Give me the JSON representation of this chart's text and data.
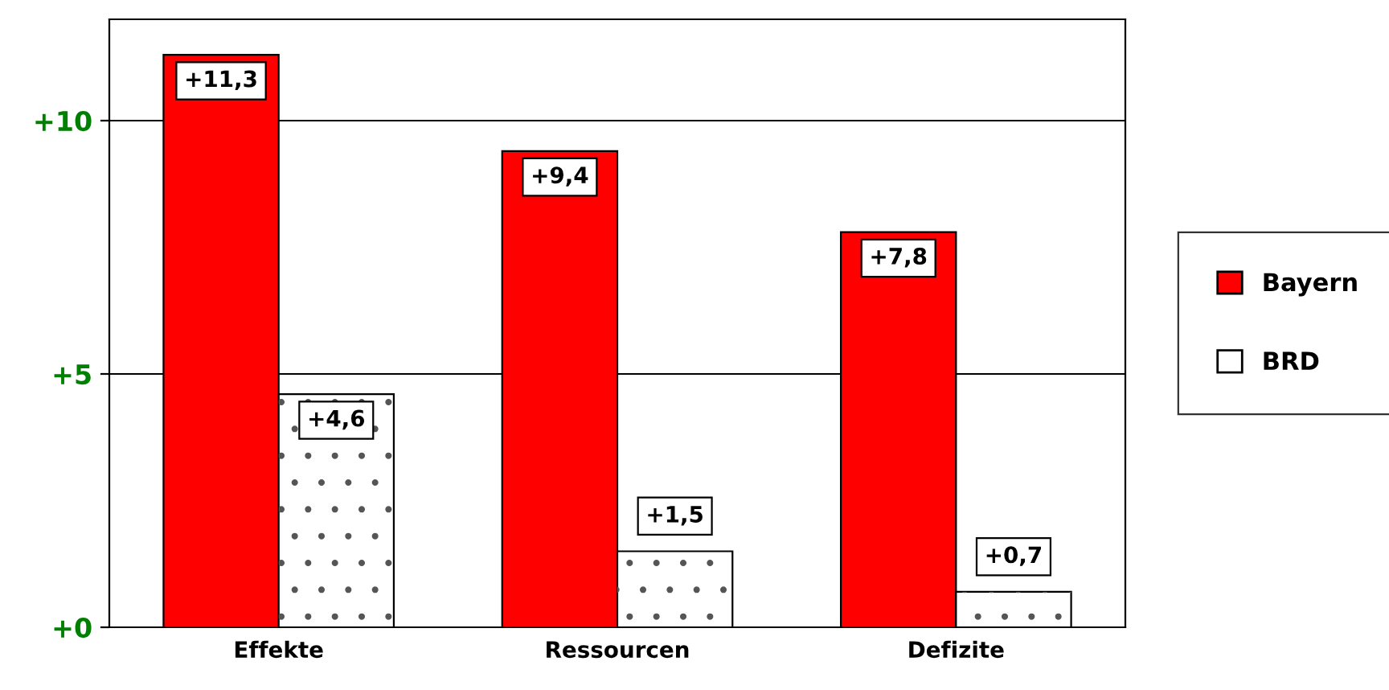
{
  "chart_data": {
    "type": "bar",
    "categories": [
      "Effekte",
      "Ressourcen",
      "Defizite"
    ],
    "series": [
      {
        "name": "Bayern",
        "color": "#ff0000",
        "values": [
          11.3,
          9.4,
          7.8
        ],
        "value_labels": [
          "+11,3",
          "+9,4",
          "+7,8"
        ]
      },
      {
        "name": "BRD",
        "color": "#ffffff",
        "values": [
          4.6,
          1.5,
          0.7
        ],
        "value_labels": [
          "+4,6",
          "+1,5",
          "+0,7"
        ]
      }
    ],
    "ylim": [
      0,
      12
    ],
    "yticks": [
      {
        "value": 0,
        "label": "+0"
      },
      {
        "value": 5,
        "label": "+5"
      },
      {
        "value": 10,
        "label": "+10"
      }
    ],
    "grid": "y",
    "legend": "right"
  }
}
